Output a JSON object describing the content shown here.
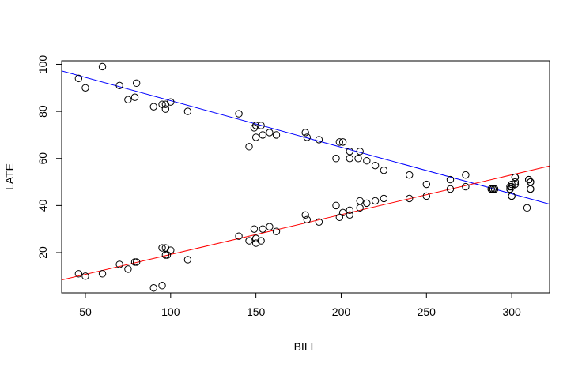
{
  "chart_data": {
    "type": "scatter",
    "title": "",
    "xlabel": "BILL",
    "ylabel": "LATE",
    "xlim": [
      36.1,
      322.2
    ],
    "ylim": [
      2.9,
      101.5
    ],
    "x_ticks": [
      50,
      100,
      150,
      200,
      250,
      300
    ],
    "x_tick_labels": [
      "50",
      "100",
      "150",
      "200",
      "250",
      "300"
    ],
    "y_ticks": [
      20,
      40,
      60,
      80,
      100
    ],
    "y_tick_labels": [
      "20",
      "40",
      "60",
      "80",
      "100"
    ],
    "grid": false,
    "legend": "none",
    "series": [
      {
        "color": "#000000",
        "marker": "open-circle",
        "points": [
          [
            46,
            94
          ],
          [
            50,
            90
          ],
          [
            60,
            99
          ],
          [
            70,
            91
          ],
          [
            75,
            85
          ],
          [
            79,
            86
          ],
          [
            80,
            92
          ],
          [
            90,
            82
          ],
          [
            95,
            83
          ],
          [
            97,
            81
          ],
          [
            97,
            83
          ],
          [
            100,
            84
          ],
          [
            110,
            80
          ],
          [
            140,
            79
          ],
          [
            146,
            65
          ],
          [
            149,
            73
          ],
          [
            150,
            74
          ],
          [
            150,
            69
          ],
          [
            153,
            74
          ],
          [
            154,
            70
          ],
          [
            158,
            71
          ],
          [
            162,
            70
          ],
          [
            179,
            71
          ],
          [
            180,
            69
          ],
          [
            187,
            68
          ],
          [
            197,
            60
          ],
          [
            199,
            67
          ],
          [
            201,
            67
          ],
          [
            205,
            63
          ],
          [
            205,
            60
          ],
          [
            210,
            60
          ],
          [
            211,
            63
          ],
          [
            215,
            59
          ],
          [
            220,
            57
          ],
          [
            225,
            55
          ],
          [
            240,
            53
          ],
          [
            250,
            49
          ],
          [
            264,
            51
          ],
          [
            273,
            53
          ],
          [
            288,
            47
          ],
          [
            289,
            47
          ],
          [
            290,
            47
          ],
          [
            299,
            47
          ],
          [
            299,
            48
          ],
          [
            300,
            44
          ],
          [
            300,
            49
          ],
          [
            302,
            50
          ],
          [
            302,
            52
          ],
          [
            309,
            39
          ],
          [
            310,
            51
          ],
          [
            311,
            50
          ],
          [
            311,
            47
          ]
        ]
      },
      {
        "color": "#000000",
        "marker": "open-circle",
        "points": [
          [
            46,
            11
          ],
          [
            50,
            10
          ],
          [
            60,
            11
          ],
          [
            70,
            15
          ],
          [
            75,
            13
          ],
          [
            79,
            16
          ],
          [
            80,
            16
          ],
          [
            90,
            5
          ],
          [
            95,
            6
          ],
          [
            95,
            22
          ],
          [
            97,
            22
          ],
          [
            97,
            19
          ],
          [
            98,
            19
          ],
          [
            100,
            21
          ],
          [
            110,
            17
          ],
          [
            140,
            27
          ],
          [
            146,
            25
          ],
          [
            149,
            30
          ],
          [
            150,
            26
          ],
          [
            150,
            24
          ],
          [
            153,
            25
          ],
          [
            154,
            30
          ],
          [
            158,
            31
          ],
          [
            162,
            29
          ],
          [
            179,
            36
          ],
          [
            180,
            34
          ],
          [
            187,
            33
          ],
          [
            197,
            40
          ],
          [
            199,
            35
          ],
          [
            201,
            37
          ],
          [
            205,
            38
          ],
          [
            205,
            36
          ],
          [
            211,
            42
          ],
          [
            211,
            39
          ],
          [
            215,
            41
          ],
          [
            220,
            42
          ],
          [
            225,
            43
          ],
          [
            240,
            43
          ],
          [
            250,
            44
          ],
          [
            264,
            47
          ],
          [
            273,
            48
          ],
          [
            288,
            47
          ],
          [
            289,
            47
          ],
          [
            290,
            47
          ],
          [
            299,
            47
          ],
          [
            300,
            48
          ],
          [
            300,
            44
          ],
          [
            302,
            49
          ],
          [
            302,
            52
          ],
          [
            310,
            51
          ],
          [
            311,
            50
          ],
          [
            311,
            47
          ]
        ]
      }
    ],
    "lines": [
      {
        "color": "#0000ff",
        "x": [
          36.1,
          322.2
        ],
        "y": [
          97.2,
          40.6
        ]
      },
      {
        "color": "#ff0000",
        "x": [
          36.1,
          322.2
        ],
        "y": [
          8.4,
          56.8
        ]
      }
    ]
  }
}
